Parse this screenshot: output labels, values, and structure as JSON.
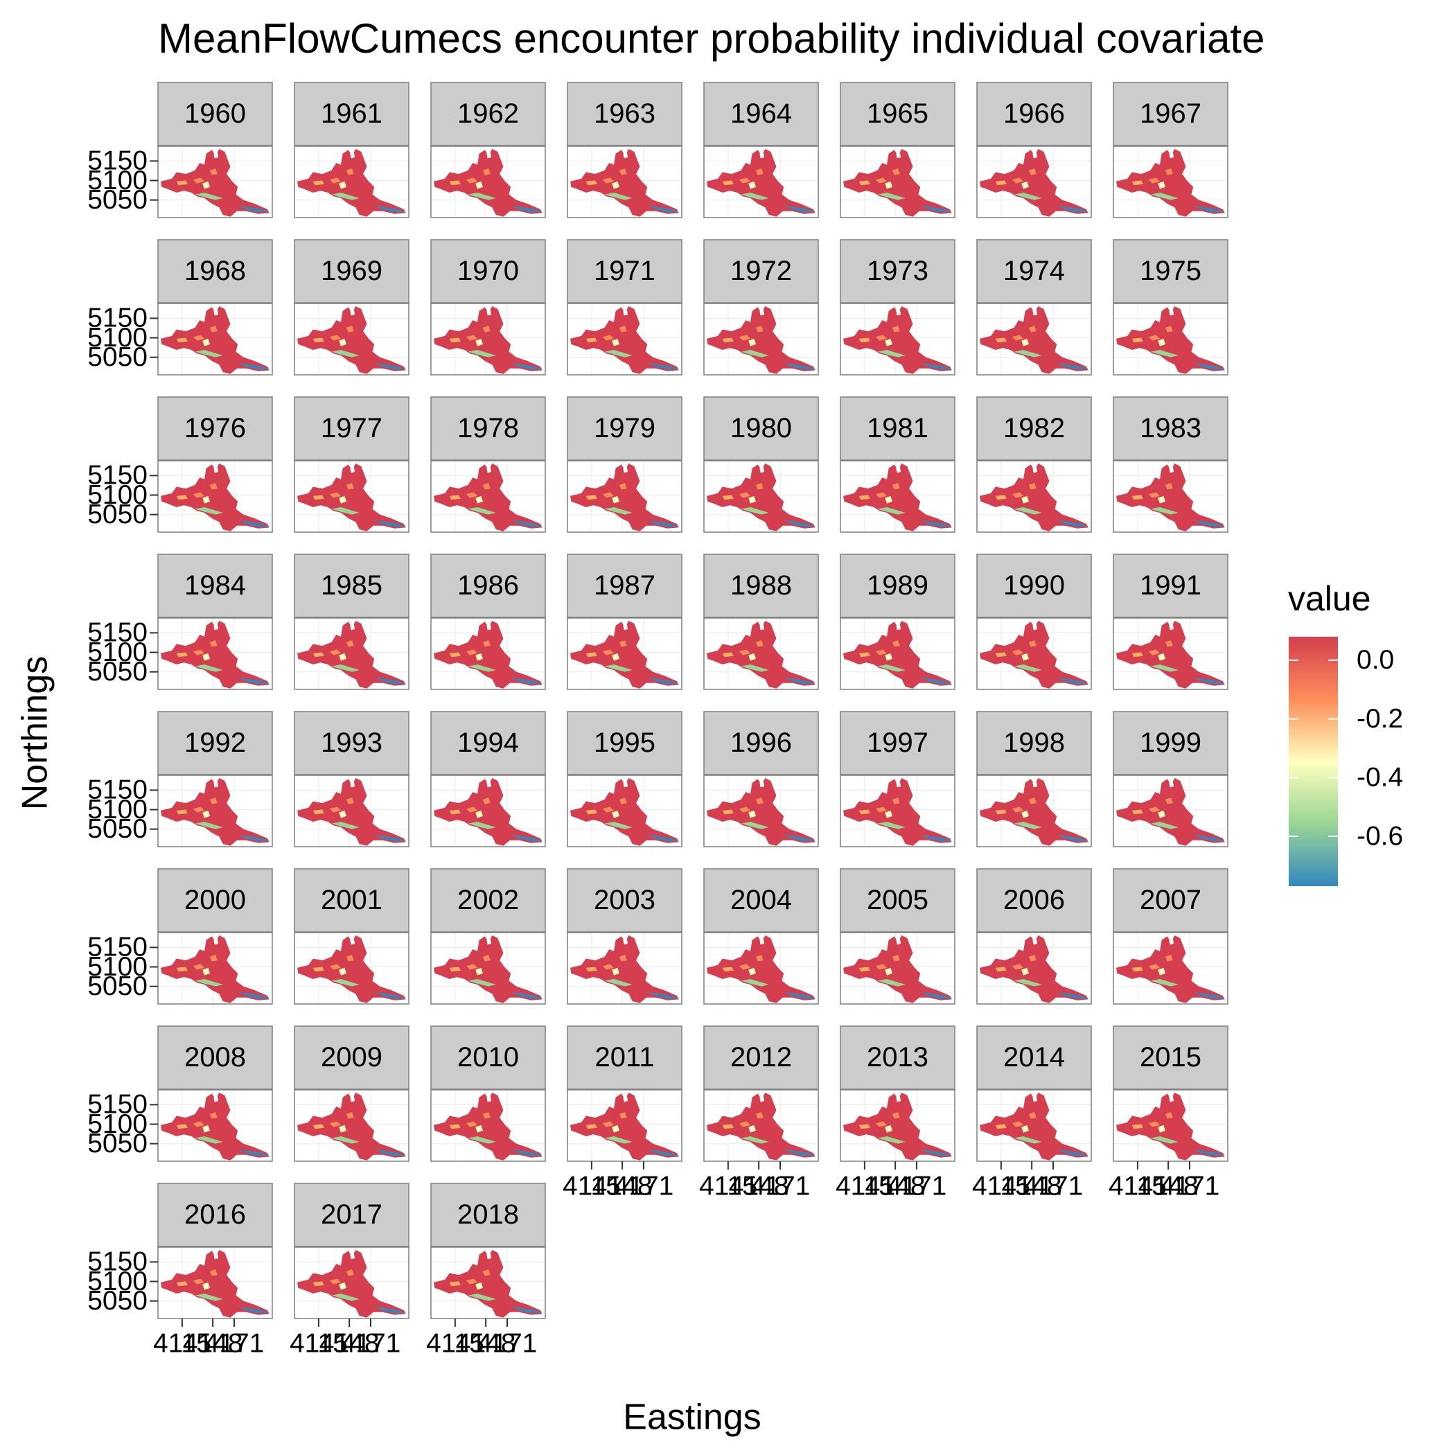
{
  "chart_data": {
    "type": "facet-map",
    "title": "MeanFlowCumecs encounter probability individual covariate",
    "x_label": "Eastings",
    "y_label": "Northings",
    "panels": [
      "1960",
      "1961",
      "1962",
      "1963",
      "1964",
      "1965",
      "1966",
      "1967",
      "1968",
      "1969",
      "1970",
      "1971",
      "1972",
      "1973",
      "1974",
      "1975",
      "1976",
      "1977",
      "1978",
      "1979",
      "1980",
      "1981",
      "1982",
      "1983",
      "1984",
      "1985",
      "1986",
      "1987",
      "1988",
      "1989",
      "1990",
      "1991",
      "1992",
      "1993",
      "1994",
      "1995",
      "1996",
      "1997",
      "1998",
      "1999",
      "2000",
      "2001",
      "2002",
      "2003",
      "2004",
      "2005",
      "2006",
      "2007",
      "2008",
      "2009",
      "2010",
      "2011",
      "2012",
      "2013",
      "2014",
      "2015",
      "2016",
      "2017",
      "2018"
    ],
    "xlim": [
      4089,
      4212
    ],
    "xticks": [
      4115,
      4148,
      4171
    ],
    "ylim": [
      5005,
      5188
    ],
    "yticks": [
      5050,
      5100,
      5150
    ],
    "legend_title": "value",
    "colorlim": [
      -0.77,
      0.08
    ],
    "colorticks": [
      {
        "value": 0,
        "label": "0.0"
      },
      -0.2,
      -0.4,
      -0.6
    ],
    "colorscale": [
      "#3288bd",
      "#99d594",
      "#ffffbf",
      "#fc8d59",
      "#d53e4f"
    ],
    "grid": true
  }
}
